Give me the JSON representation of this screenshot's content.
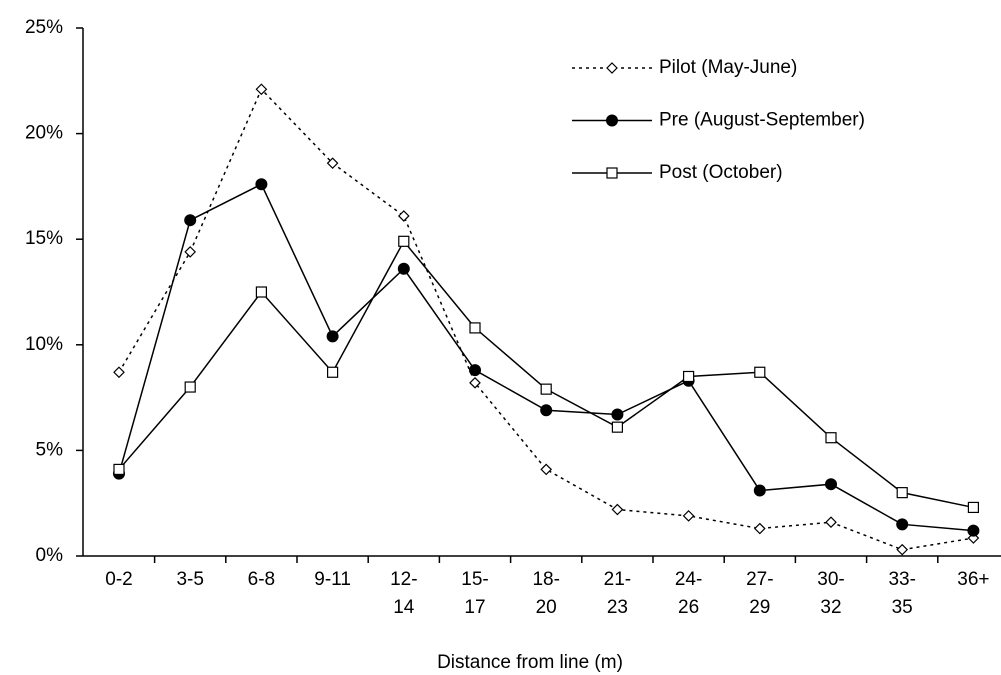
{
  "chart_data": {
    "type": "line",
    "x_label": "Distance from line (m)",
    "categories": [
      "0-2",
      "3-5",
      "6-8",
      "9-11",
      "12-14",
      "15-17",
      "18-20",
      "21-23",
      "24-26",
      "27-29",
      "30-32",
      "33-35",
      "36+"
    ],
    "series": [
      {
        "name": "Pilot (May-June)",
        "color": "#000000",
        "line_style": "dotted",
        "marker": "diamond",
        "values": [
          8.7,
          14.4,
          22.1,
          18.6,
          16.1,
          8.2,
          4.1,
          2.2,
          1.9,
          1.3,
          1.6,
          0.3,
          0.85
        ]
      },
      {
        "name": "Pre (August-September)",
        "color": "#000000",
        "line_style": "solid",
        "marker": "circle",
        "values": [
          3.9,
          15.9,
          17.6,
          10.4,
          13.6,
          8.8,
          6.9,
          6.7,
          8.3,
          3.1,
          3.4,
          1.5,
          1.2
        ]
      },
      {
        "name": "Post (October)",
        "color": "#000000",
        "line_style": "solid",
        "marker": "square",
        "values": [
          4.1,
          8.0,
          12.5,
          8.7,
          14.9,
          10.8,
          7.9,
          6.1,
          8.5,
          8.7,
          5.6,
          3.0,
          2.3
        ]
      }
    ],
    "ylim": [
      0,
      25
    ],
    "yticks": [
      {
        "value": 0,
        "label": "0%"
      },
      {
        "value": 5,
        "label": "5%"
      },
      {
        "value": 10,
        "label": "10%"
      },
      {
        "value": 15,
        "label": "15%"
      },
      {
        "value": 20,
        "label": "20%"
      },
      {
        "value": 25,
        "label": "25%"
      }
    ],
    "grid": false,
    "legend": "upper right"
  }
}
